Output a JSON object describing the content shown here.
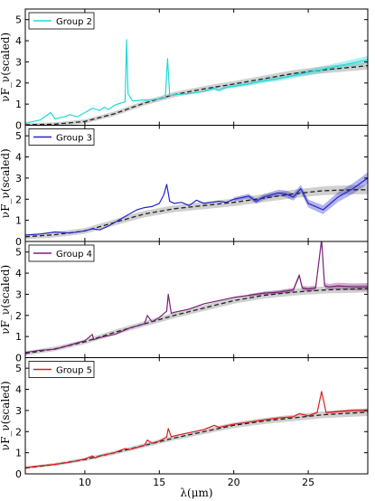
{
  "chart_data": [
    {
      "type": "line",
      "panel": "Group 2",
      "ylabel": "νF_ν(scaled)",
      "xlim": [
        6,
        29
      ],
      "ylim": [
        0,
        5.5
      ],
      "yticks": [
        0,
        1,
        2,
        3,
        4,
        5
      ],
      "legend": {
        "placement": "top-left",
        "entries": [
          "Group 2"
        ]
      },
      "series": [
        {
          "name": "Group 2",
          "color": "#22d8d8",
          "x": [
            6,
            7,
            7.7,
            8,
            8.6,
            9,
            9.5,
            10,
            10.5,
            11,
            11.3,
            11.6,
            12,
            12.4,
            12.7,
            12.8,
            12.9,
            13.2,
            14,
            14.5,
            15,
            15.4,
            15.55,
            15.7,
            16,
            17,
            18,
            18.7,
            19,
            19.5,
            20,
            21,
            22,
            23,
            24,
            25,
            26,
            27,
            28,
            29
          ],
          "y": [
            0.1,
            0.25,
            0.6,
            0.3,
            0.4,
            0.5,
            0.4,
            0.6,
            0.8,
            0.7,
            0.85,
            0.75,
            0.95,
            1.05,
            1.1,
            4.05,
            1.5,
            1.15,
            1.2,
            1.2,
            1.25,
            1.3,
            3.15,
            1.4,
            1.45,
            1.5,
            1.6,
            1.75,
            1.65,
            1.8,
            1.85,
            1.95,
            2.1,
            2.2,
            2.35,
            2.5,
            2.65,
            2.8,
            2.95,
            3.1
          ]
        }
      ],
      "model_lines": [
        {
          "x": [
            6,
            8,
            10,
            12,
            14,
            16,
            18,
            20,
            22,
            24,
            26,
            28,
            29
          ],
          "y": [
            0.02,
            0.05,
            0.18,
            0.55,
            1.05,
            1.45,
            1.72,
            1.95,
            2.2,
            2.45,
            2.62,
            2.75,
            2.82
          ]
        }
      ],
      "band_halfwidth": [
        0.08,
        0.18
      ],
      "series_band_halfwidth": 0.12,
      "band_start_x": 18
    },
    {
      "type": "line",
      "panel": "Group 3",
      "ylabel": "νF_ν(scaled)",
      "xlim": [
        6,
        29
      ],
      "ylim": [
        0,
        5.5
      ],
      "yticks": [
        0,
        1,
        2,
        3,
        4,
        5
      ],
      "legend": {
        "placement": "top-left",
        "entries": [
          "Group 3"
        ]
      },
      "series": [
        {
          "name": "Group 3",
          "color": "#2424cc",
          "x": [
            6,
            7,
            8,
            9,
            10,
            10.5,
            11,
            11.5,
            12,
            12.5,
            13,
            13.5,
            14,
            14.5,
            15,
            15.3,
            15.5,
            15.7,
            16,
            16.5,
            17,
            17.5,
            18,
            18.5,
            19,
            19.5,
            20,
            21,
            21.5,
            22,
            23,
            23.5,
            24,
            24.5,
            25,
            26,
            27,
            28,
            29
          ],
          "y": [
            0.3,
            0.35,
            0.45,
            0.4,
            0.5,
            0.6,
            0.55,
            0.7,
            0.9,
            1.1,
            1.3,
            1.5,
            1.6,
            1.65,
            1.8,
            2.2,
            2.7,
            1.9,
            1.8,
            1.85,
            1.7,
            1.95,
            1.8,
            1.85,
            1.9,
            1.85,
            2.0,
            2.15,
            1.9,
            2.1,
            2.3,
            2.25,
            2.1,
            2.5,
            1.8,
            1.5,
            2.1,
            2.5,
            3.0
          ]
        }
      ],
      "model_lines": [
        {
          "x": [
            6,
            8,
            10,
            12,
            14,
            16,
            18,
            20,
            22,
            24,
            26,
            28,
            29
          ],
          "y": [
            0.22,
            0.32,
            0.5,
            0.9,
            1.3,
            1.55,
            1.7,
            1.85,
            2.05,
            2.25,
            2.4,
            2.45,
            2.45
          ]
        }
      ],
      "band_halfwidth": [
        0.12,
        0.22
      ],
      "series_band_halfwidth": 0.18,
      "band_start_x": 20
    },
    {
      "type": "line",
      "panel": "Group 4",
      "ylabel": "νF_ν(scaled)",
      "xlim": [
        6,
        29
      ],
      "ylim": [
        0,
        5.5
      ],
      "yticks": [
        0,
        1,
        2,
        3,
        4,
        5
      ],
      "legend": {
        "placement": "top-left",
        "entries": [
          "Group 4"
        ]
      },
      "series": [
        {
          "name": "Group 4",
          "color": "#7a1f7a",
          "x": [
            6,
            7,
            8,
            9,
            10,
            10.5,
            10.6,
            11,
            12,
            13,
            14,
            14.2,
            14.5,
            15,
            15.5,
            15.6,
            15.8,
            16,
            17,
            18,
            19,
            20,
            21,
            22,
            23,
            24,
            24.4,
            24.6,
            25,
            25.5,
            25.9,
            26.1,
            26.4,
            27,
            28,
            29
          ],
          "y": [
            0.25,
            0.35,
            0.4,
            0.6,
            0.8,
            1.1,
            0.85,
            0.95,
            1.1,
            1.4,
            1.6,
            2.0,
            1.7,
            1.9,
            2.2,
            3.0,
            2.1,
            2.15,
            2.3,
            2.55,
            2.7,
            2.85,
            2.95,
            3.05,
            3.1,
            3.2,
            3.9,
            3.3,
            3.25,
            3.3,
            5.6,
            3.4,
            3.35,
            3.4,
            3.35,
            3.35
          ]
        }
      ],
      "model_lines": [
        {
          "x": [
            6,
            8,
            10,
            12,
            14,
            16,
            18,
            20,
            22,
            24,
            26,
            28,
            29
          ],
          "y": [
            0.2,
            0.42,
            0.75,
            1.2,
            1.6,
            2.0,
            2.35,
            2.7,
            2.95,
            3.1,
            3.2,
            3.25,
            3.27
          ]
        }
      ],
      "band_halfwidth": [
        0.1,
        0.18
      ],
      "series_band_halfwidth": 0.12,
      "band_start_x": 21
    },
    {
      "type": "line",
      "panel": "Group 5",
      "ylabel": "νF_ν(scaled)",
      "xlabel": "λ(μm)",
      "xlim": [
        6,
        29
      ],
      "ylim": [
        0,
        5.5
      ],
      "yticks": [
        0,
        1,
        2,
        3,
        4,
        5
      ],
      "xticks": [
        10,
        15,
        20,
        25
      ],
      "legend": {
        "placement": "top-left",
        "entries": [
          "Group 5"
        ]
      },
      "series": [
        {
          "name": "Group 5",
          "color": "#dd1f1f",
          "x": [
            6,
            7,
            8,
            9,
            10,
            10.5,
            10.7,
            11,
            12,
            12.7,
            13,
            14,
            14.2,
            14.5,
            15,
            15.5,
            15.6,
            15.8,
            16,
            17,
            18,
            18.7,
            19,
            20,
            21,
            22,
            23,
            24,
            24.4,
            25,
            25.6,
            25.9,
            26.2,
            27,
            28,
            29
          ],
          "y": [
            0.3,
            0.38,
            0.45,
            0.55,
            0.7,
            0.85,
            0.75,
            0.85,
            1.0,
            1.2,
            1.15,
            1.35,
            1.6,
            1.45,
            1.55,
            1.75,
            2.15,
            1.75,
            1.8,
            1.95,
            2.1,
            2.3,
            2.2,
            2.35,
            2.45,
            2.55,
            2.65,
            2.7,
            2.85,
            2.75,
            2.9,
            3.9,
            2.9,
            2.95,
            3.0,
            3.0
          ]
        }
      ],
      "model_lines": [
        {
          "x": [
            6,
            8,
            10,
            12,
            14,
            16,
            18,
            20,
            22,
            24,
            26,
            28,
            29
          ],
          "y": [
            0.28,
            0.45,
            0.68,
            1.0,
            1.35,
            1.7,
            2.0,
            2.3,
            2.5,
            2.65,
            2.8,
            2.88,
            2.92
          ]
        }
      ],
      "band_halfwidth": [
        0.06,
        0.18
      ],
      "series_band_halfwidth": 0.05,
      "band_start_x": 24
    }
  ]
}
